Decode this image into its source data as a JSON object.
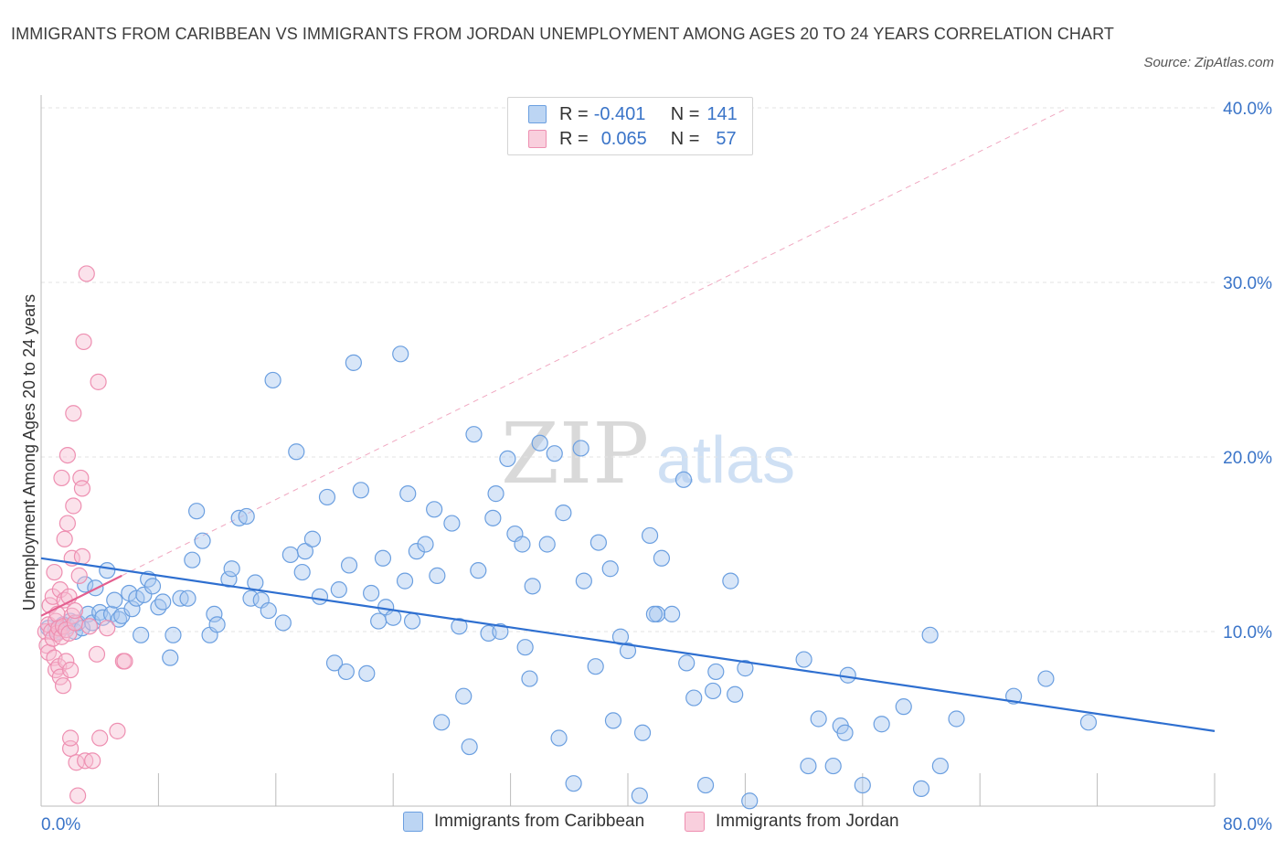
{
  "title": "IMMIGRANTS FROM CARIBBEAN VS IMMIGRANTS FROM JORDAN UNEMPLOYMENT AMONG AGES 20 TO 24 YEARS CORRELATION CHART",
  "source": "Source: ZipAtlas.com",
  "watermark": {
    "zip": "ZIP",
    "atlas": "atlas"
  },
  "legend": {
    "rows": [
      {
        "r_label": "R =",
        "r_value": "-0.401",
        "n_label": "N =",
        "n_value": "141"
      },
      {
        "r_label": "R =",
        "r_value": "0.065",
        "n_label": "N =",
        "n_value": "57"
      }
    ]
  },
  "bottom_legend": [
    "Immigrants from Caribbean",
    "Immigrants from Jordan"
  ],
  "colors": {
    "caribbean_fill": "#a9c8ef",
    "caribbean_stroke": "#6b9fe0",
    "caribbean_line": "#2e6fd0",
    "jordan_fill": "#f7bfd2",
    "jordan_stroke": "#ee8fb1",
    "jordan_line": "#e45f8f",
    "tick_text": "#3a74c8",
    "grid": "#e3e3e3"
  },
  "chart_data": {
    "type": "scatter",
    "title": "IMMIGRANTS FROM CARIBBEAN VS IMMIGRANTS FROM JORDAN UNEMPLOYMENT AMONG AGES 20 TO 24 YEARS CORRELATION CHART",
    "xlabel": "",
    "ylabel": "Unemployment Among Ages 20 to 24 years",
    "xlim": [
      0,
      80
    ],
    "ylim": [
      0,
      40
    ],
    "x_ticks_labels": [
      "0.0%",
      "80.0%"
    ],
    "y_ticks": [
      10,
      20,
      30,
      40
    ],
    "y_tick_labels": [
      "10.0%",
      "20.0%",
      "30.0%",
      "40.0%"
    ],
    "grid": true,
    "legend_position": "top-center",
    "series": [
      {
        "name": "Immigrants from Caribbean",
        "R": -0.401,
        "N": 141,
        "trend": {
          "x": [
            0,
            80
          ],
          "y": [
            14.2,
            4.3
          ]
        },
        "points": [
          [
            0.5,
            10.2
          ],
          [
            1.0,
            10.1
          ],
          [
            1.2,
            10.0
          ],
          [
            1.5,
            10.4
          ],
          [
            1.8,
            10.3
          ],
          [
            2.0,
            10.6
          ],
          [
            2.3,
            10.0
          ],
          [
            2.5,
            10.5
          ],
          [
            2.8,
            10.2
          ],
          [
            3.0,
            12.7
          ],
          [
            3.2,
            11.0
          ],
          [
            3.5,
            10.5
          ],
          [
            3.7,
            12.5
          ],
          [
            4.0,
            11.1
          ],
          [
            4.2,
            10.8
          ],
          [
            4.5,
            13.5
          ],
          [
            4.8,
            11.0
          ],
          [
            5.0,
            11.8
          ],
          [
            5.3,
            10.7
          ],
          [
            5.5,
            10.9
          ],
          [
            6.0,
            12.2
          ],
          [
            6.2,
            11.3
          ],
          [
            6.5,
            11.9
          ],
          [
            6.8,
            9.8
          ],
          [
            7.0,
            12.1
          ],
          [
            7.3,
            13.0
          ],
          [
            7.6,
            12.6
          ],
          [
            8.0,
            11.4
          ],
          [
            8.3,
            11.7
          ],
          [
            8.8,
            8.5
          ],
          [
            9.0,
            9.8
          ],
          [
            9.5,
            11.9
          ],
          [
            10.0,
            11.9
          ],
          [
            10.3,
            14.1
          ],
          [
            10.6,
            16.9
          ],
          [
            11.0,
            15.2
          ],
          [
            11.5,
            9.8
          ],
          [
            11.8,
            11.0
          ],
          [
            12.0,
            10.4
          ],
          [
            12.8,
            13.0
          ],
          [
            13.0,
            13.6
          ],
          [
            13.5,
            16.5
          ],
          [
            14.0,
            16.6
          ],
          [
            14.3,
            11.9
          ],
          [
            14.6,
            12.8
          ],
          [
            15.0,
            11.8
          ],
          [
            15.5,
            11.2
          ],
          [
            15.8,
            24.4
          ],
          [
            16.5,
            10.5
          ],
          [
            17.0,
            14.4
          ],
          [
            17.4,
            20.3
          ],
          [
            17.8,
            13.4
          ],
          [
            18.0,
            14.6
          ],
          [
            18.5,
            15.3
          ],
          [
            19.0,
            12.0
          ],
          [
            19.5,
            17.7
          ],
          [
            20.0,
            8.2
          ],
          [
            20.3,
            12.4
          ],
          [
            20.8,
            7.7
          ],
          [
            21.0,
            13.8
          ],
          [
            21.3,
            25.4
          ],
          [
            21.8,
            18.1
          ],
          [
            22.2,
            7.6
          ],
          [
            22.5,
            12.2
          ],
          [
            23.0,
            10.6
          ],
          [
            23.3,
            14.2
          ],
          [
            23.5,
            11.4
          ],
          [
            24.0,
            10.8
          ],
          [
            24.5,
            25.9
          ],
          [
            24.8,
            12.9
          ],
          [
            25.0,
            17.9
          ],
          [
            25.3,
            10.6
          ],
          [
            25.6,
            14.6
          ],
          [
            26.2,
            15.0
          ],
          [
            26.8,
            17.0
          ],
          [
            27.0,
            13.2
          ],
          [
            27.3,
            4.8
          ],
          [
            28.0,
            16.2
          ],
          [
            28.5,
            10.3
          ],
          [
            28.8,
            6.3
          ],
          [
            29.2,
            3.4
          ],
          [
            29.5,
            21.3
          ],
          [
            29.8,
            13.5
          ],
          [
            30.5,
            9.9
          ],
          [
            30.8,
            16.5
          ],
          [
            31.0,
            17.9
          ],
          [
            31.3,
            10.0
          ],
          [
            31.8,
            19.9
          ],
          [
            32.3,
            15.6
          ],
          [
            32.8,
            15.0
          ],
          [
            33.0,
            9.1
          ],
          [
            33.3,
            7.3
          ],
          [
            33.5,
            12.6
          ],
          [
            34.0,
            20.8
          ],
          [
            34.5,
            15.0
          ],
          [
            35.0,
            20.2
          ],
          [
            35.3,
            3.9
          ],
          [
            35.6,
            16.8
          ],
          [
            36.3,
            1.3
          ],
          [
            36.8,
            20.5
          ],
          [
            37.0,
            12.9
          ],
          [
            37.8,
            8.0
          ],
          [
            38.0,
            15.1
          ],
          [
            38.8,
            13.6
          ],
          [
            39.0,
            4.9
          ],
          [
            39.5,
            9.7
          ],
          [
            40.0,
            8.9
          ],
          [
            40.8,
            0.6
          ],
          [
            41.0,
            4.2
          ],
          [
            41.5,
            15.5
          ],
          [
            42.0,
            11.0
          ],
          [
            42.3,
            14.2
          ],
          [
            43.0,
            11.0
          ],
          [
            43.8,
            18.7
          ],
          [
            44.0,
            8.2
          ],
          [
            44.5,
            6.2
          ],
          [
            45.3,
            1.2
          ],
          [
            45.8,
            6.6
          ],
          [
            46.0,
            7.7
          ],
          [
            47.0,
            12.9
          ],
          [
            47.3,
            6.4
          ],
          [
            48.0,
            7.9
          ],
          [
            48.3,
            0.3
          ],
          [
            52.0,
            8.4
          ],
          [
            52.3,
            2.3
          ],
          [
            53.0,
            5.0
          ],
          [
            54.0,
            2.3
          ],
          [
            54.5,
            4.6
          ],
          [
            55.0,
            7.5
          ],
          [
            56.0,
            1.2
          ],
          [
            57.3,
            4.7
          ],
          [
            58.8,
            5.7
          ],
          [
            60.0,
            1.0
          ],
          [
            60.6,
            9.8
          ],
          [
            61.3,
            2.3
          ],
          [
            62.4,
            5.0
          ],
          [
            66.3,
            6.3
          ],
          [
            68.5,
            7.3
          ],
          [
            71.4,
            4.8
          ],
          [
            54.8,
            4.2
          ],
          [
            41.8,
            11.0
          ]
        ]
      },
      {
        "name": "Immigrants from Jordan",
        "R": 0.065,
        "N": 57,
        "trend": {
          "x": [
            0,
            5.5
          ],
          "y": [
            10.9,
            13.2
          ]
        },
        "points": [
          [
            0.3,
            10.0
          ],
          [
            0.4,
            9.2
          ],
          [
            0.5,
            8.8
          ],
          [
            0.5,
            10.4
          ],
          [
            0.6,
            11.5
          ],
          [
            0.7,
            10.0
          ],
          [
            0.8,
            9.6
          ],
          [
            0.8,
            12.0
          ],
          [
            0.9,
            8.5
          ],
          [
            0.9,
            13.4
          ],
          [
            1.0,
            10.6
          ],
          [
            1.0,
            7.8
          ],
          [
            1.1,
            9.9
          ],
          [
            1.1,
            11.0
          ],
          [
            1.2,
            10.2
          ],
          [
            1.2,
            8.0
          ],
          [
            1.3,
            7.4
          ],
          [
            1.3,
            12.4
          ],
          [
            1.4,
            9.7
          ],
          [
            1.4,
            18.8
          ],
          [
            1.5,
            10.3
          ],
          [
            1.5,
            6.9
          ],
          [
            1.6,
            11.8
          ],
          [
            1.6,
            15.3
          ],
          [
            1.7,
            10.1
          ],
          [
            1.7,
            8.3
          ],
          [
            1.8,
            16.2
          ],
          [
            1.8,
            20.1
          ],
          [
            1.9,
            9.9
          ],
          [
            1.9,
            12.0
          ],
          [
            2.0,
            7.8
          ],
          [
            2.0,
            3.3
          ],
          [
            2.1,
            10.9
          ],
          [
            2.1,
            14.2
          ],
          [
            2.2,
            17.2
          ],
          [
            2.2,
            22.5
          ],
          [
            2.3,
            10.5
          ],
          [
            2.3,
            11.2
          ],
          [
            2.4,
            2.5
          ],
          [
            2.5,
            0.6
          ],
          [
            2.6,
            13.2
          ],
          [
            2.7,
            18.8
          ],
          [
            2.8,
            14.3
          ],
          [
            2.8,
            18.2
          ],
          [
            2.9,
            26.6
          ],
          [
            3.0,
            2.6
          ],
          [
            3.1,
            30.5
          ],
          [
            3.3,
            10.3
          ],
          [
            3.5,
            2.6
          ],
          [
            3.8,
            8.7
          ],
          [
            3.9,
            24.3
          ],
          [
            4.0,
            3.9
          ],
          [
            4.5,
            10.2
          ],
          [
            5.2,
            4.3
          ],
          [
            5.6,
            8.3
          ],
          [
            5.7,
            8.3
          ],
          [
            2.0,
            3.9
          ]
        ]
      }
    ]
  }
}
